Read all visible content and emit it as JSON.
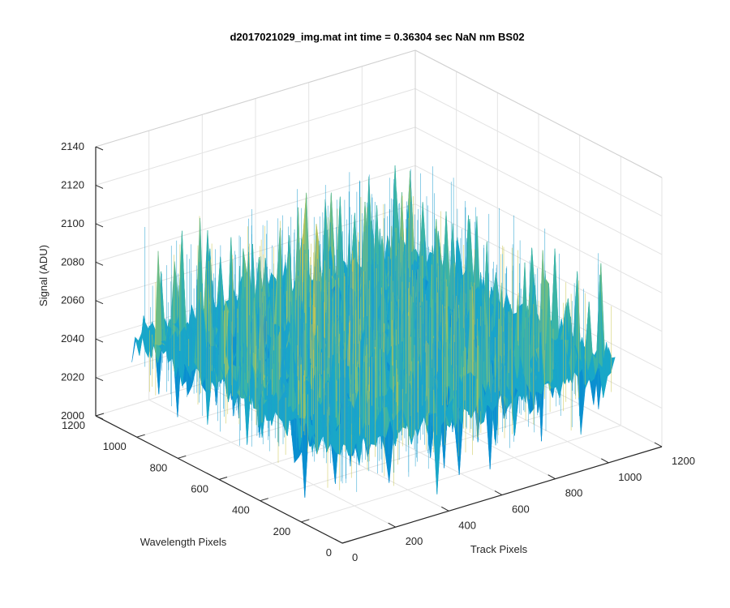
{
  "chart_data": {
    "type": "surface",
    "title": "d2017021029_img.mat int time = 0.36304 sec  NaN nm BS02",
    "xlabel": "Track Pixels",
    "ylabel": "Wavelength Pixels",
    "zlabel": "Signal (ADU)",
    "xlim": [
      0,
      1200
    ],
    "ylim": [
      0,
      1200
    ],
    "zlim": [
      2000,
      2140
    ],
    "xticks": [
      "0",
      "200",
      "400",
      "600",
      "800",
      "1000",
      "1200"
    ],
    "yticks": [
      "0",
      "200",
      "400",
      "600",
      "800",
      "1000",
      "1200"
    ],
    "zticks": [
      "2000",
      "2020",
      "2040",
      "2060",
      "2080",
      "2100",
      "2120",
      "2140"
    ],
    "grid": true,
    "surface": {
      "x_range": [
        0,
        1024
      ],
      "y_range": [
        0,
        1024
      ],
      "mean_signal": 2050,
      "min_signal": 2005,
      "max_signal": 2130,
      "colormap": [
        "#0072bd",
        "#0a8fd0",
        "#19a7c8",
        "#3bb4a6",
        "#6dbd86",
        "#b4c25e",
        "#e6c63b"
      ]
    }
  }
}
